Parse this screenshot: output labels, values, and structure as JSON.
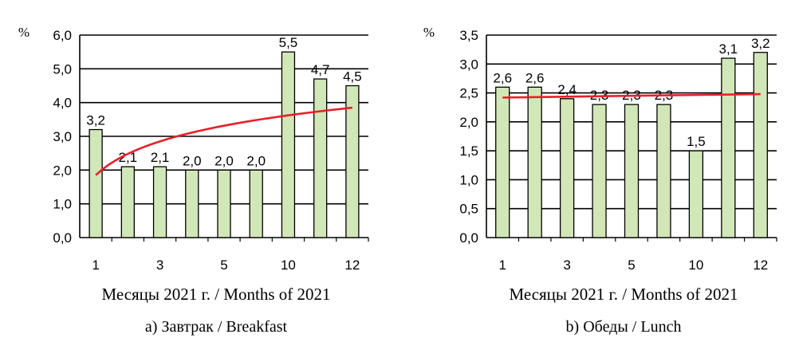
{
  "chart_data": [
    {
      "type": "bar",
      "unit_label": "%",
      "categories": [
        "1",
        "2",
        "3",
        "4",
        "5",
        "9",
        "10",
        "11",
        "12"
      ],
      "tick_labels": [
        "1",
        "",
        "3",
        "",
        "5",
        "",
        "10",
        "",
        "12"
      ],
      "values": [
        3.2,
        2.1,
        2.1,
        2.0,
        2.0,
        2.0,
        5.5,
        4.7,
        4.5
      ],
      "data_labels": [
        "3,2",
        "2,1",
        "2,1",
        "2,0",
        "2,0",
        "2,0",
        "5,5",
        "4,7",
        "4,5"
      ],
      "trendline": {
        "type": "logarithmic",
        "color": "#e8202a"
      },
      "ylim": [
        0,
        6
      ],
      "yticks": [
        "0,0",
        "1,0",
        "2,0",
        "3,0",
        "4,0",
        "5,0",
        "6,0"
      ],
      "grid": true,
      "bar_color": "#d2e7b8",
      "xlabel": "Месяцы 2021 г. / Months of 2021",
      "caption": "a) Завтрак / Breakfast"
    },
    {
      "type": "bar",
      "unit_label": "%",
      "categories": [
        "1",
        "2",
        "3",
        "4",
        "5",
        "9",
        "10",
        "11",
        "12"
      ],
      "tick_labels": [
        "1",
        "",
        "3",
        "",
        "5",
        "",
        "10",
        "",
        "12"
      ],
      "values": [
        2.6,
        2.6,
        2.4,
        2.3,
        2.3,
        2.3,
        1.5,
        3.1,
        3.2
      ],
      "data_labels": [
        "2,6",
        "2,6",
        "2,4",
        "2,3",
        "2,3",
        "2,3",
        "1,5",
        "3,1",
        "3,2"
      ],
      "trendline": {
        "type": "linear",
        "color": "#e8202a"
      },
      "ylim": [
        0,
        3.5
      ],
      "yticks": [
        "0,0",
        "0,5",
        "1,0",
        "1,5",
        "2,0",
        "2,5",
        "3,0",
        "3,5"
      ],
      "grid": true,
      "bar_color": "#d2e7b8",
      "xlabel": "Месяцы 2021 г. / Months of 2021",
      "caption": "b) Обеды / Lunch"
    }
  ]
}
